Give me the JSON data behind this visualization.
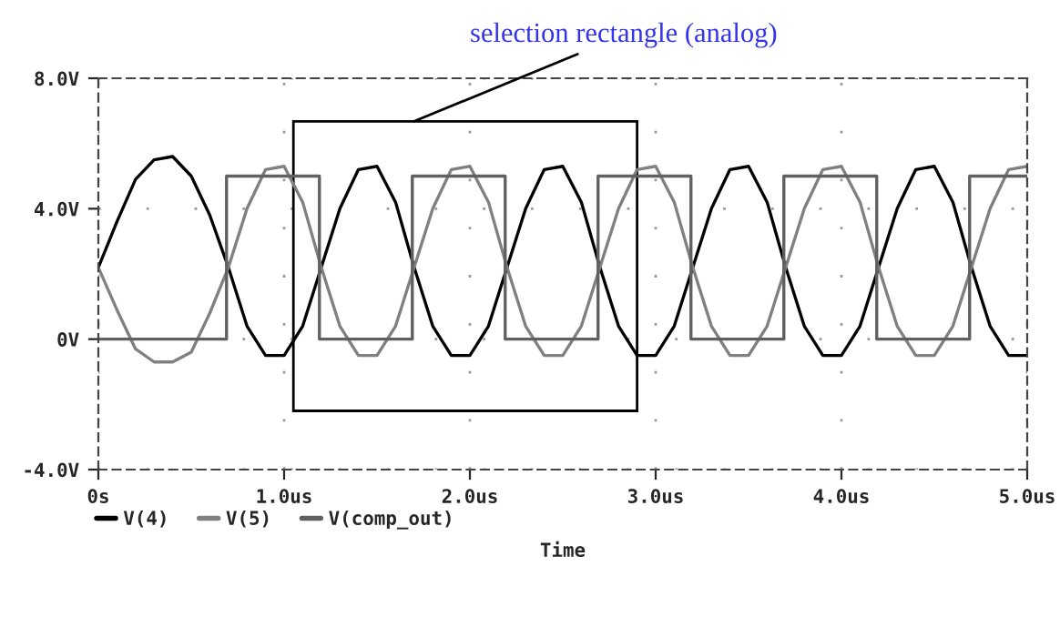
{
  "chart_data": {
    "type": "line",
    "xlabel": "Time",
    "xlim": [
      0,
      5
    ],
    "ylim": [
      -4,
      8
    ],
    "xticks": [
      {
        "value": 0,
        "label": "0s"
      },
      {
        "value": 1,
        "label": "1.0us"
      },
      {
        "value": 2,
        "label": "2.0us"
      },
      {
        "value": 3,
        "label": "3.0us"
      },
      {
        "value": 4,
        "label": "4.0us"
      },
      {
        "value": 5,
        "label": "5.0us"
      }
    ],
    "yticks": [
      {
        "value": -4,
        "label": "-4.0V"
      },
      {
        "value": 0,
        "label": "0V"
      },
      {
        "value": 4,
        "label": "4.0V"
      },
      {
        "value": 8,
        "label": "8.0V"
      }
    ],
    "grid": true,
    "legend": "bottom left",
    "line_style": "solid",
    "annotations": [
      "selection rectangle (analog)"
    ],
    "series": [
      {
        "name": "V(4)",
        "color": "#000000",
        "x": [
          0,
          0.1,
          0.2,
          0.3,
          0.4,
          0.5,
          0.6,
          0.7,
          0.8,
          0.9,
          1.0,
          1.1,
          1.2,
          1.3,
          1.4,
          1.5,
          1.6,
          1.7,
          1.8,
          1.9,
          2.0,
          2.1,
          2.2,
          2.3,
          2.4,
          2.5,
          2.6,
          2.7,
          2.8,
          2.9,
          3.0,
          3.1,
          3.2,
          3.3,
          3.4,
          3.5,
          3.6,
          3.7,
          3.8,
          3.9,
          4.0,
          4.1,
          4.2,
          4.3,
          4.4,
          4.5,
          4.6,
          4.7,
          4.8,
          4.9,
          5.0
        ],
        "values": [
          2.2,
          3.6,
          4.9,
          5.5,
          5.6,
          5.0,
          3.8,
          2.2,
          0.4,
          -0.5,
          -0.5,
          0.4,
          2.2,
          4.0,
          5.2,
          5.3,
          4.2,
          2.2,
          0.4,
          -0.5,
          -0.5,
          0.4,
          2.2,
          4.0,
          5.2,
          5.3,
          4.2,
          2.2,
          0.4,
          -0.5,
          -0.5,
          0.4,
          2.2,
          4.0,
          5.2,
          5.3,
          4.2,
          2.2,
          0.4,
          -0.5,
          -0.5,
          0.4,
          2.2,
          4.0,
          5.2,
          5.3,
          4.2,
          2.2,
          0.4,
          -0.5,
          -0.5
        ]
      },
      {
        "name": "V(5)",
        "color": "#808080",
        "x": [
          0,
          0.1,
          0.2,
          0.3,
          0.4,
          0.5,
          0.6,
          0.7,
          0.8,
          0.9,
          1.0,
          1.1,
          1.2,
          1.3,
          1.4,
          1.5,
          1.6,
          1.7,
          1.8,
          1.9,
          2.0,
          2.1,
          2.2,
          2.3,
          2.4,
          2.5,
          2.6,
          2.7,
          2.8,
          2.9,
          3.0,
          3.1,
          3.2,
          3.3,
          3.4,
          3.5,
          3.6,
          3.7,
          3.8,
          3.9,
          4.0,
          4.1,
          4.2,
          4.3,
          4.4,
          4.5,
          4.6,
          4.7,
          4.8,
          4.9,
          5.0
        ],
        "values": [
          2.2,
          0.9,
          -0.3,
          -0.7,
          -0.7,
          -0.4,
          0.8,
          2.2,
          4.0,
          5.2,
          5.3,
          4.2,
          2.2,
          0.4,
          -0.5,
          -0.5,
          0.4,
          2.2,
          4.0,
          5.2,
          5.3,
          4.2,
          2.2,
          0.4,
          -0.5,
          -0.5,
          0.4,
          2.2,
          4.0,
          5.2,
          5.3,
          4.2,
          2.2,
          0.4,
          -0.5,
          -0.5,
          0.4,
          2.2,
          4.0,
          5.2,
          5.3,
          4.2,
          2.2,
          0.4,
          -0.5,
          -0.5,
          0.4,
          2.2,
          4.0,
          5.2,
          5.3
        ]
      },
      {
        "name": "V(comp_out)",
        "color": "#606060",
        "x": [
          0,
          0.69,
          0.69,
          1.19,
          1.19,
          1.69,
          1.69,
          2.19,
          2.19,
          2.69,
          2.69,
          3.19,
          3.19,
          3.69,
          3.69,
          4.19,
          4.19,
          4.69,
          4.69,
          5.0
        ],
        "values": [
          0,
          0,
          5,
          5,
          0,
          0,
          5,
          5,
          0,
          0,
          5,
          5,
          0,
          0,
          5,
          5,
          0,
          0,
          5,
          5
        ]
      }
    ]
  }
}
